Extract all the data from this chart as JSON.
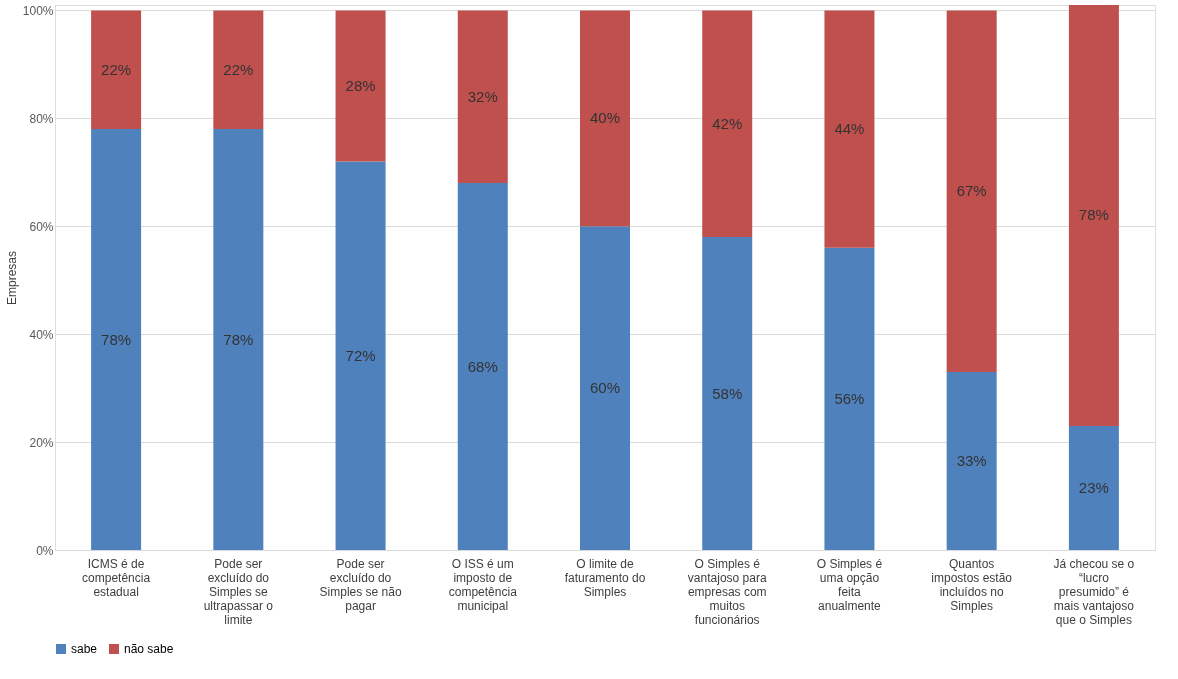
{
  "chart_data": {
    "type": "bar",
    "stacked": true,
    "ylabel": "Empresas",
    "categories": [
      "ICMS é de competência estadual",
      "Pode ser excluído do Simples se ultrapassar o limite",
      "Pode ser excluído do Simples se não pagar",
      "O ISS é um imposto de competência municipal",
      "O limite de faturamento do Simples",
      "O Simples é vantajoso para empresas com muitos funcionários",
      "O Simples é uma opção feita anualmente",
      "Quantos impostos estão incluídos no Simples",
      "Já checou se o “lucro presumido” é mais vantajoso que o Simples"
    ],
    "series": [
      {
        "name": "sabe",
        "color": "#4f81bd",
        "values": [
          78,
          78,
          72,
          68,
          60,
          58,
          56,
          33,
          23
        ],
        "value_labels": [
          "78%",
          "78%",
          "72%",
          "68%",
          "60%",
          "58%",
          "56%",
          "33%",
          "23%"
        ]
      },
      {
        "name": "não sabe",
        "color": "#c0504d",
        "values": [
          22,
          22,
          28,
          32,
          40,
          42,
          44,
          67,
          78
        ],
        "value_labels": [
          "22%",
          "22%",
          "28%",
          "32%",
          "40%",
          "42%",
          "44%",
          "67%",
          "78%"
        ]
      }
    ],
    "ylim": [
      0,
      101
    ],
    "yticks": [
      {
        "value": 0,
        "label": "0%"
      },
      {
        "value": 20,
        "label": "20%"
      },
      {
        "value": 40,
        "label": "40%"
      },
      {
        "value": 60,
        "label": "60%"
      },
      {
        "value": 80,
        "label": "80%"
      },
      {
        "value": 100,
        "label": "100%"
      }
    ],
    "grid": "y",
    "legend": "bottom"
  }
}
